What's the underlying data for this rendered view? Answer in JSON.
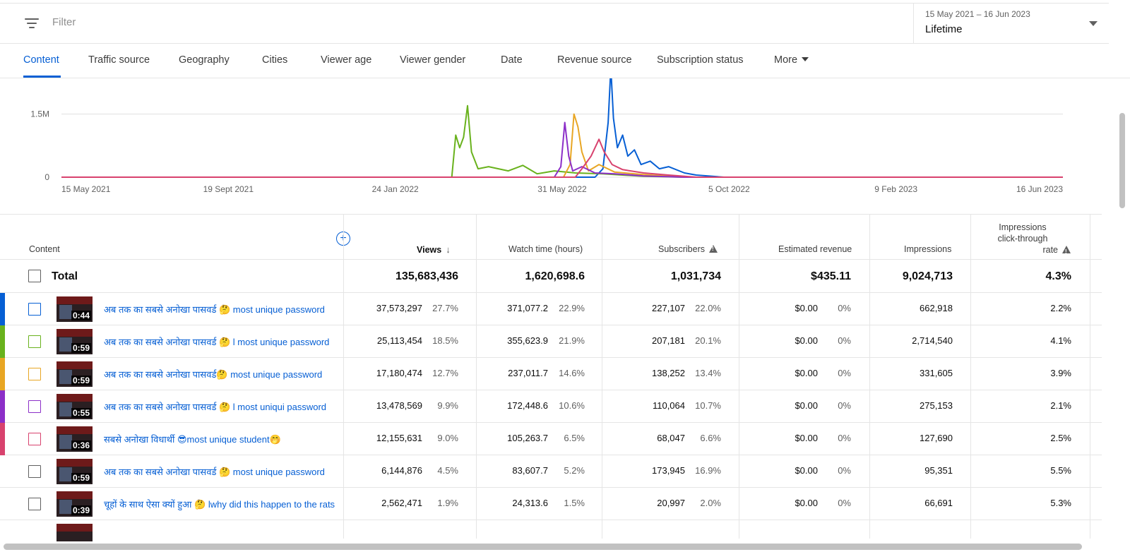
{
  "filterbar": {
    "placeholder": "Filter",
    "date_range": "15 May 2021 – 16 Jun 2023",
    "date_label": "Lifetime"
  },
  "tabs": [
    {
      "label": "Content",
      "active": true
    },
    {
      "label": "Traffic source"
    },
    {
      "label": "Geography"
    },
    {
      "label": "Cities"
    },
    {
      "label": "Viewer age"
    },
    {
      "label": "Viewer gender"
    },
    {
      "label": "Date"
    },
    {
      "label": "Revenue source"
    },
    {
      "label": "Subscription status"
    },
    {
      "label": "More"
    }
  ],
  "chart_data": {
    "type": "line",
    "y_ticks": [
      "1.5M",
      "0"
    ],
    "x_ticks": [
      "15 May 2021",
      "19 Sept 2021",
      "24 Jan 2022",
      "31 May 2022",
      "5 Oct 2022",
      "9 Feb 2023",
      "16 Jun 2023"
    ],
    "x_range": [
      "2021-05-15",
      "2023-06-16"
    ],
    "ylim": [
      0,
      2600000
    ],
    "grid": true,
    "series": [
      {
        "color": "#065fd4",
        "points": [
          [
            "2021-05-15",
            0
          ],
          [
            "2022-06-25",
            0
          ],
          [
            "2022-07-01",
            200000
          ],
          [
            "2022-07-05",
            1300000
          ],
          [
            "2022-07-07",
            2600000
          ],
          [
            "2022-07-09",
            1400000
          ],
          [
            "2022-07-12",
            700000
          ],
          [
            "2022-07-16",
            1000000
          ],
          [
            "2022-07-20",
            500000
          ],
          [
            "2022-07-25",
            650000
          ],
          [
            "2022-07-30",
            300000
          ],
          [
            "2022-08-06",
            380000
          ],
          [
            "2022-08-13",
            200000
          ],
          [
            "2022-08-20",
            250000
          ],
          [
            "2022-09-01",
            100000
          ],
          [
            "2022-09-10",
            50000
          ],
          [
            "2022-10-01",
            0
          ],
          [
            "2023-06-16",
            0
          ]
        ]
      },
      {
        "color": "#69b21d",
        "points": [
          [
            "2021-05-15",
            0
          ],
          [
            "2022-03-08",
            0
          ],
          [
            "2022-03-11",
            1000000
          ],
          [
            "2022-03-14",
            700000
          ],
          [
            "2022-03-17",
            950000
          ],
          [
            "2022-03-20",
            1700000
          ],
          [
            "2022-03-23",
            600000
          ],
          [
            "2022-03-28",
            200000
          ],
          [
            "2022-04-05",
            250000
          ],
          [
            "2022-04-20",
            150000
          ],
          [
            "2022-05-01",
            280000
          ],
          [
            "2022-05-12",
            80000
          ],
          [
            "2022-05-25",
            150000
          ],
          [
            "2022-06-10",
            100000
          ],
          [
            "2022-07-01",
            80000
          ],
          [
            "2022-08-01",
            20000
          ],
          [
            "2022-09-01",
            0
          ],
          [
            "2023-06-16",
            0
          ]
        ]
      },
      {
        "color": "#e8a624",
        "points": [
          [
            "2021-05-15",
            0
          ],
          [
            "2022-06-01",
            0
          ],
          [
            "2022-06-06",
            300000
          ],
          [
            "2022-06-09",
            1500000
          ],
          [
            "2022-06-12",
            1200000
          ],
          [
            "2022-06-15",
            600000
          ],
          [
            "2022-06-20",
            150000
          ],
          [
            "2022-06-28",
            300000
          ],
          [
            "2022-07-10",
            120000
          ],
          [
            "2022-08-01",
            60000
          ],
          [
            "2022-09-01",
            0
          ],
          [
            "2023-06-16",
            0
          ]
        ]
      },
      {
        "color": "#8c2fc8",
        "points": [
          [
            "2021-05-15",
            0
          ],
          [
            "2022-05-25",
            0
          ],
          [
            "2022-05-30",
            250000
          ],
          [
            "2022-06-02",
            1300000
          ],
          [
            "2022-06-05",
            500000
          ],
          [
            "2022-06-08",
            150000
          ],
          [
            "2022-06-15",
            250000
          ],
          [
            "2022-06-25",
            100000
          ],
          [
            "2022-07-10",
            80000
          ],
          [
            "2022-08-01",
            30000
          ],
          [
            "2022-09-01",
            0
          ],
          [
            "2023-06-16",
            0
          ]
        ]
      },
      {
        "color": "#d8426e",
        "points": [
          [
            "2021-05-15",
            0
          ],
          [
            "2022-06-10",
            0
          ],
          [
            "2022-06-15",
            200000
          ],
          [
            "2022-06-22",
            500000
          ],
          [
            "2022-06-28",
            900000
          ],
          [
            "2022-07-02",
            600000
          ],
          [
            "2022-07-08",
            300000
          ],
          [
            "2022-07-16",
            180000
          ],
          [
            "2022-08-01",
            100000
          ],
          [
            "2022-08-20",
            50000
          ],
          [
            "2022-09-10",
            0
          ],
          [
            "2023-06-16",
            0
          ]
        ]
      }
    ]
  },
  "table": {
    "headers": {
      "content": "Content",
      "views": "Views",
      "watch_time": "Watch time (hours)",
      "subscribers": "Subscribers",
      "revenue": "Estimated revenue",
      "impressions": "Impressions",
      "ctr_line1": "Impressions",
      "ctr_line2": "click-through",
      "ctr_line3": "rate"
    },
    "total": {
      "label": "Total",
      "views": "135,683,436",
      "watch_time": "1,620,698.6",
      "subscribers": "1,031,734",
      "revenue": "$435.11",
      "impressions": "9,024,713",
      "ctr": "4.3%"
    },
    "rows": [
      {
        "color": "#065fd4",
        "duration": "0:44",
        "title": "अब तक का सबसे अनोखा पासवर्ड 🤔 most unique password",
        "views": "37,573,297",
        "views_pct": "27.7%",
        "watch": "371,077.2",
        "watch_pct": "22.9%",
        "subs": "227,107",
        "subs_pct": "22.0%",
        "revenue": "$0.00",
        "revenue_pct": "0%",
        "impressions": "662,918",
        "ctr": "2.2%"
      },
      {
        "color": "#69b21d",
        "duration": "0:59",
        "title": "अब तक का सबसे अनोखा पासवर्ड 🤔 l most unique password",
        "views": "25,113,454",
        "views_pct": "18.5%",
        "watch": "355,623.9",
        "watch_pct": "21.9%",
        "subs": "207,181",
        "subs_pct": "20.1%",
        "revenue": "$0.00",
        "revenue_pct": "0%",
        "impressions": "2,714,540",
        "ctr": "4.1%"
      },
      {
        "color": "#e8a624",
        "duration": "0:59",
        "title": "अब तक का सबसे अनोखा पासवर्ड🤔 most unique password",
        "views": "17,180,474",
        "views_pct": "12.7%",
        "watch": "237,011.7",
        "watch_pct": "14.6%",
        "subs": "138,252",
        "subs_pct": "13.4%",
        "revenue": "$0.00",
        "revenue_pct": "0%",
        "impressions": "331,605",
        "ctr": "3.9%"
      },
      {
        "color": "#8c2fc8",
        "duration": "0:55",
        "title": "अब तक का सबसे अनोखा पासवर्ड 🤔 l most uniqui password",
        "views": "13,478,569",
        "views_pct": "9.9%",
        "watch": "172,448.6",
        "watch_pct": "10.6%",
        "subs": "110,064",
        "subs_pct": "10.7%",
        "revenue": "$0.00",
        "revenue_pct": "0%",
        "impressions": "275,153",
        "ctr": "2.1%"
      },
      {
        "color": "#d8426e",
        "duration": "0:36",
        "title": "सबसे अनोखा विधार्थी 😎most unique student🤭",
        "views": "12,155,631",
        "views_pct": "9.0%",
        "watch": "105,263.7",
        "watch_pct": "6.5%",
        "subs": "68,047",
        "subs_pct": "6.6%",
        "revenue": "$0.00",
        "revenue_pct": "0%",
        "impressions": "127,690",
        "ctr": "2.5%"
      },
      {
        "color": "",
        "duration": "0:59",
        "title": "अब तक का सबसे अनोखा पासवर्ड 🤔 most unique password",
        "views": "6,144,876",
        "views_pct": "4.5%",
        "watch": "83,607.7",
        "watch_pct": "5.2%",
        "subs": "173,945",
        "subs_pct": "16.9%",
        "revenue": "$0.00",
        "revenue_pct": "0%",
        "impressions": "95,351",
        "ctr": "5.5%"
      },
      {
        "color": "",
        "duration": "0:39",
        "title": "चूहों के साथ ऐसा क्यों हुआ 🤔 lwhy did this happen to the rats",
        "views": "2,562,471",
        "views_pct": "1.9%",
        "watch": "24,313.6",
        "watch_pct": "1.5%",
        "subs": "20,997",
        "subs_pct": "2.0%",
        "revenue": "$0.00",
        "revenue_pct": "0%",
        "impressions": "66,691",
        "ctr": "5.3%"
      }
    ]
  }
}
